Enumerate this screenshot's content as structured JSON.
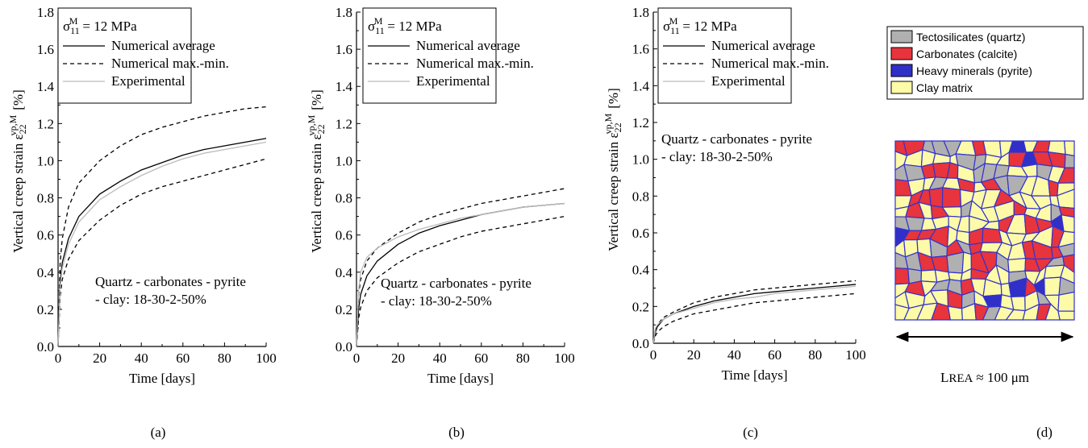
{
  "chart_data": [
    {
      "type": "line",
      "panel_label": "(a)",
      "xlabel": "Time [days]",
      "ylabel": "Vertical creep strain ε",
      "ylabel_sub": "22",
      "ylabel_sup": "vp,M",
      "ylabel_unit": "[%]",
      "legend_header": {
        "symbol": "σ",
        "sub": "11",
        "sup": "M",
        "text": "= 12 MPa"
      },
      "annotation": [
        "Quartz - carbonates - pyrite",
        "- clay: 18-30-2-50%"
      ],
      "legend": "upper left",
      "x": [
        0,
        1,
        2,
        5,
        10,
        20,
        30,
        40,
        50,
        60,
        70,
        80,
        90,
        100
      ],
      "xlim": [
        0,
        100
      ],
      "xticks": [
        0,
        20,
        40,
        60,
        80,
        100
      ],
      "ylim": [
        0,
        1.8
      ],
      "yticks": [
        {
          "value": 0,
          "label": "0.0"
        },
        0.2,
        0.4,
        0.6,
        0.8,
        {
          "value": 1,
          "label": "1.0"
        },
        1.2,
        1.4,
        1.6,
        1.8
      ],
      "series": [
        {
          "name": "Numerical average",
          "color": "#000000",
          "style": "solid",
          "values": [
            0,
            0.35,
            0.45,
            0.58,
            0.7,
            0.82,
            0.89,
            0.95,
            0.99,
            1.03,
            1.06,
            1.08,
            1.1,
            1.12
          ]
        },
        {
          "name": "Numerical max.-min.",
          "color": "#000000",
          "style": "dashed",
          "upper": [
            0,
            0.45,
            0.58,
            0.75,
            0.88,
            1.0,
            1.08,
            1.14,
            1.18,
            1.21,
            1.24,
            1.26,
            1.28,
            1.29
          ],
          "lower": [
            0,
            0.27,
            0.36,
            0.47,
            0.57,
            0.68,
            0.76,
            0.82,
            0.86,
            0.89,
            0.92,
            0.95,
            0.98,
            1.01
          ]
        },
        {
          "name": "Experimental",
          "color": "#bbbbbb",
          "style": "solid",
          "values": [
            0,
            0.32,
            0.42,
            0.55,
            0.67,
            0.79,
            0.86,
            0.92,
            0.97,
            1.01,
            1.04,
            1.06,
            1.08,
            1.1
          ]
        }
      ]
    },
    {
      "type": "line",
      "panel_label": "(b)",
      "xlabel": "Time [days]",
      "ylabel": "Vertical creep strain ε",
      "ylabel_sub": "22",
      "ylabel_sup": "vp,M",
      "ylabel_unit": "[%]",
      "legend_header": {
        "symbol": "σ",
        "sub": "11",
        "sup": "M",
        "text": "= 12 MPa"
      },
      "annotation": [
        "Quartz - carbonates - pyrite",
        "- clay: 18-30-2-50%"
      ],
      "legend": "upper left",
      "x": [
        0,
        1,
        2,
        5,
        10,
        20,
        30,
        40,
        50,
        60,
        70,
        80,
        90,
        100
      ],
      "xlim": [
        0,
        100
      ],
      "xticks": [
        0,
        20,
        40,
        60,
        80,
        100
      ],
      "ylim": [
        0,
        1.8
      ],
      "yticks": [
        {
          "value": 0,
          "label": "0.0"
        },
        0.2,
        0.4,
        0.6,
        0.8,
        {
          "value": 1,
          "label": "1.0"
        },
        1.2,
        1.4,
        1.6,
        1.8
      ],
      "series": [
        {
          "name": "Numerical average",
          "color": "#000000",
          "style": "solid",
          "values": [
            0,
            0.2,
            0.28,
            0.38,
            0.46,
            0.55,
            0.61,
            0.65,
            0.68,
            0.71,
            0.73,
            0.75,
            0.76,
            0.77
          ]
        },
        {
          "name": "Numerical max.-min.",
          "color": "#000000",
          "style": "dashed",
          "upper": [
            0,
            0.28,
            0.36,
            0.46,
            0.53,
            0.61,
            0.67,
            0.71,
            0.74,
            0.77,
            0.79,
            0.81,
            0.83,
            0.85
          ],
          "lower": [
            0,
            0.15,
            0.21,
            0.3,
            0.37,
            0.45,
            0.51,
            0.55,
            0.59,
            0.62,
            0.64,
            0.66,
            0.68,
            0.7
          ]
        },
        {
          "name": "Experimental",
          "color": "#bbbbbb",
          "style": "solid",
          "values": [
            0,
            0.3,
            0.4,
            0.48,
            0.53,
            0.59,
            0.63,
            0.66,
            0.69,
            0.71,
            0.73,
            0.75,
            0.76,
            0.77
          ]
        }
      ]
    },
    {
      "type": "line",
      "panel_label": "(c)",
      "xlabel": "Time [days]",
      "ylabel": "Vertical creep strain ε",
      "ylabel_sub": "22",
      "ylabel_sup": "vp,M",
      "ylabel_unit": "[%]",
      "legend_header": {
        "symbol": "σ",
        "sub": "11",
        "sup": "M",
        "text": "= 12 MPa"
      },
      "annotation": [
        "Quartz - carbonates - pyrite",
        "- clay: 18-30-2-50%"
      ],
      "legend": "upper left",
      "x": [
        0,
        1,
        2,
        5,
        10,
        20,
        30,
        40,
        50,
        60,
        70,
        80,
        90,
        100
      ],
      "xlim": [
        0,
        100
      ],
      "xticks": [
        0,
        20,
        40,
        60,
        80,
        100
      ],
      "ylim": [
        0,
        1.8
      ],
      "yticks": [
        {
          "value": 0,
          "label": "0.0"
        },
        0.2,
        0.4,
        0.6,
        0.8,
        {
          "value": 1,
          "label": "1.0"
        },
        1.2,
        1.4,
        1.6,
        1.8
      ],
      "series": [
        {
          "name": "Numerical average",
          "color": "#000000",
          "style": "solid",
          "values": [
            0,
            0.06,
            0.09,
            0.13,
            0.16,
            0.2,
            0.23,
            0.25,
            0.27,
            0.28,
            0.29,
            0.3,
            0.31,
            0.32
          ]
        },
        {
          "name": "Numerical max.-min.",
          "color": "#000000",
          "style": "dashed",
          "upper": [
            0,
            0.07,
            0.1,
            0.14,
            0.17,
            0.22,
            0.25,
            0.27,
            0.29,
            0.3,
            0.31,
            0.32,
            0.33,
            0.34
          ],
          "lower": [
            0,
            0.04,
            0.06,
            0.09,
            0.12,
            0.16,
            0.18,
            0.2,
            0.22,
            0.23,
            0.24,
            0.25,
            0.26,
            0.27
          ]
        },
        {
          "name": "Experimental",
          "color": "#bbbbbb",
          "style": "solid",
          "values": [
            0,
            0.08,
            0.1,
            0.13,
            0.16,
            0.19,
            0.22,
            0.24,
            0.25,
            0.27,
            0.28,
            0.29,
            0.3,
            0.31
          ]
        }
      ]
    }
  ],
  "panel_d": {
    "panel_label": "(d)",
    "legend": [
      {
        "name": "Tectosilicates (quartz)",
        "color": "#b0b0b0"
      },
      {
        "name": "Carbonates (calcite)",
        "color": "#e8343c"
      },
      {
        "name": "Heavy minerals (pyrite)",
        "color": "#3030c8"
      },
      {
        "name": "Clay matrix",
        "color": "#fdfaa8"
      }
    ],
    "scale_symbol": "L",
    "scale_sub": "REA",
    "scale_text": "≈ 100 μm"
  }
}
